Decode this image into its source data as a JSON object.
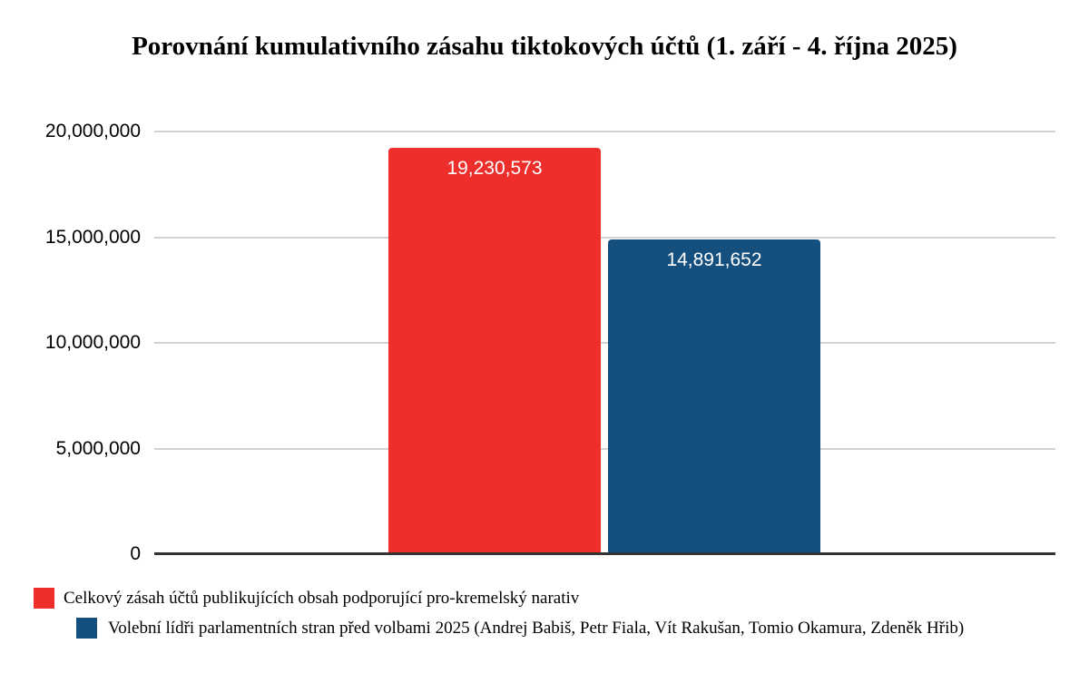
{
  "chart_data": {
    "type": "bar",
    "title": "Porovnání kumulativního zásahu tiktokových účtů (1. září - 4. října 2025)",
    "categories": [
      "Celkový zásah účtů publikujících obsah podporující pro-kremelský narativ",
      "Volební lídři parlamentních stran před volbami 2025 (Andrej Babiš, Petr Fiala, Vít Rakušan, Tomio Okamura, Zdeněk Hřib)"
    ],
    "values": [
      19230573,
      14891652
    ],
    "value_labels": [
      "19,230,573",
      "14,891,652"
    ],
    "colors": [
      "#ee2e2b",
      "#154f7d"
    ],
    "xlabel": "",
    "ylabel": "",
    "ylim": [
      0,
      20000000
    ],
    "yticks": [
      {
        "value": 20000000,
        "label": "20,000,000"
      },
      {
        "value": 15000000,
        "label": "15,000,000"
      },
      {
        "value": 10000000,
        "label": "10,000,000"
      },
      {
        "value": 5000000,
        "label": "5,000,000"
      },
      {
        "value": 0,
        "label": "0"
      }
    ],
    "grid": true,
    "legend_position": "bottom"
  }
}
